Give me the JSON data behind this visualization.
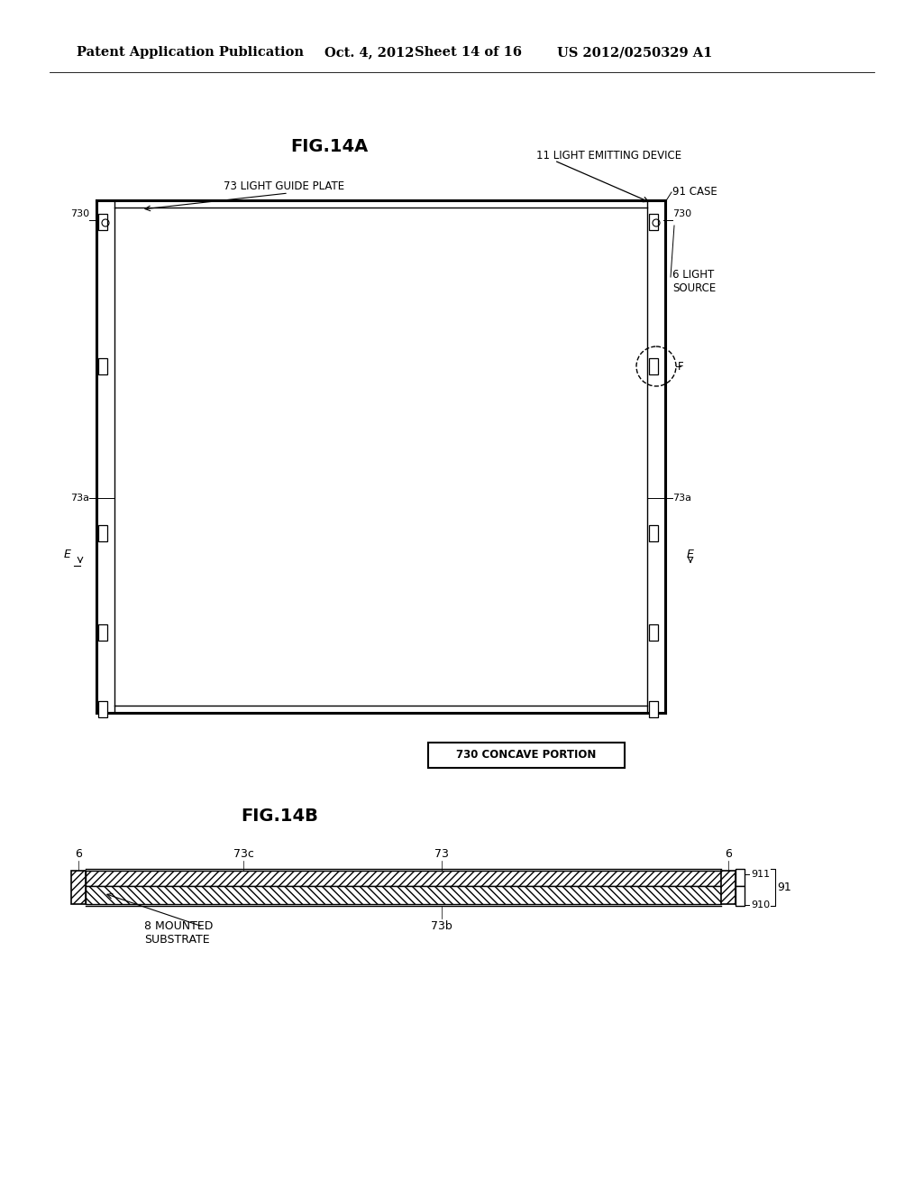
{
  "bg_color": "#ffffff",
  "header_text": "Patent Application Publication",
  "header_date": "Oct. 4, 2012",
  "header_sheet": "Sheet 14 of 16",
  "header_patent": "US 2012/0250329 A1",
  "fig14a_title": "FIG.14A",
  "fig14b_title": "FIG.14B",
  "label_11": "11 LIGHT EMITTING DEVICE",
  "label_73_plate": "73 LIGHT GUIDE PLATE",
  "label_91_case": "91 CASE",
  "label_730": "730",
  "label_6_light": "6 LIGHT\nSOURCE",
  "label_73a": "73a",
  "label_F": "F",
  "label_730_box": "730 CONCAVE PORTION",
  "label_6": "6",
  "label_73c": "73c",
  "label_73": "73",
  "label_911": "911",
  "label_910": "910",
  "label_91": "91",
  "label_8": "8 MOUNTED\nSUBSTRATE",
  "label_73b": "73b"
}
